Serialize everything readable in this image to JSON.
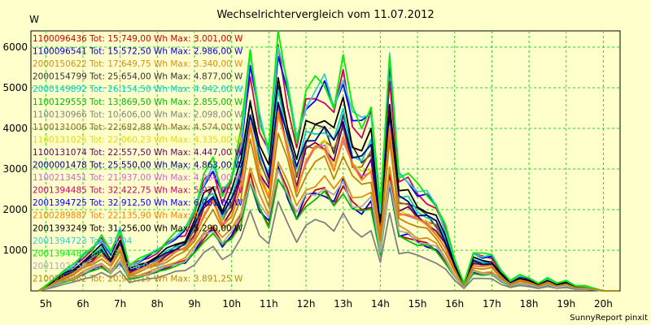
{
  "chart_data": {
    "type": "line",
    "title": "Wechselrichtervergleich vom 11.07.2012",
    "ylabel": "W",
    "xlabel": "",
    "ylim": [
      0,
      6400
    ],
    "xlim": [
      4.6,
      20.45
    ],
    "y_ticks": [
      1000,
      2000,
      3000,
      4000,
      5000,
      6000
    ],
    "x_ticks": [
      {
        "value": 5,
        "label": "5h"
      },
      {
        "value": 6,
        "label": "6h"
      },
      {
        "value": 7,
        "label": "7h"
      },
      {
        "value": 8,
        "label": "8h"
      },
      {
        "value": 9,
        "label": "9h"
      },
      {
        "value": 10,
        "label": "10h"
      },
      {
        "value": 11,
        "label": "11h"
      },
      {
        "value": 12,
        "label": "12h"
      },
      {
        "value": 13,
        "label": "13h"
      },
      {
        "value": 14,
        "label": "14h"
      },
      {
        "value": 15,
        "label": "15h"
      },
      {
        "value": 16,
        "label": "16h"
      },
      {
        "value": 17,
        "label": "17h"
      },
      {
        "value": 18,
        "label": "18h"
      },
      {
        "value": 19,
        "label": "19h"
      },
      {
        "value": 20,
        "label": "20h"
      }
    ],
    "grid": true,
    "legend_position": "top-left",
    "credit": "SunnyReport pinxit",
    "x": [
      4.8,
      5.0,
      5.25,
      5.5,
      5.75,
      6.0,
      6.25,
      6.5,
      6.75,
      7.0,
      7.25,
      7.5,
      7.75,
      8.0,
      8.25,
      8.5,
      8.75,
      9.0,
      9.25,
      9.5,
      9.75,
      10.0,
      10.25,
      10.5,
      10.75,
      11.0,
      11.25,
      11.5,
      11.75,
      12.0,
      12.25,
      12.5,
      12.75,
      13.0,
      13.25,
      13.5,
      13.75,
      14.0,
      14.25,
      14.5,
      14.75,
      15.0,
      15.25,
      15.5,
      15.75,
      16.0,
      16.25,
      16.5,
      16.75,
      17.0,
      17.25,
      17.5,
      17.75,
      18.0,
      18.25,
      18.5,
      18.75,
      19.0,
      19.25,
      19.5,
      19.75,
      20.0,
      20.4
    ],
    "profile": [
      0.0,
      0.02,
      0.05,
      0.08,
      0.1,
      0.14,
      0.17,
      0.21,
      0.15,
      0.24,
      0.1,
      0.12,
      0.14,
      0.16,
      0.19,
      0.22,
      0.24,
      0.32,
      0.44,
      0.5,
      0.38,
      0.45,
      0.6,
      0.92,
      0.68,
      0.56,
      1.0,
      0.8,
      0.6,
      0.76,
      0.8,
      0.82,
      0.73,
      0.88,
      0.7,
      0.66,
      0.72,
      0.32,
      0.91,
      0.46,
      0.45,
      0.4,
      0.38,
      0.34,
      0.25,
      0.12,
      0.03,
      0.15,
      0.14,
      0.14,
      0.08,
      0.04,
      0.06,
      0.05,
      0.03,
      0.05,
      0.03,
      0.04,
      0.02,
      0.02,
      0.01,
      0.0,
      0.0
    ],
    "series": [
      {
        "label": "1100096436 Tot: 15.749,00 Wh Max: 3.001,00 W",
        "color": "#cc0000",
        "peak": 3001
      },
      {
        "label": "1100096541 Tot: 15.572,50 Wh Max: 2.986,00 W",
        "color": "#0000cc",
        "peak": 2986
      },
      {
        "label": "2000150622 Tot: 17.649,75 Wh Max: 3.340,00 W",
        "color": "#d98c1a",
        "peak": 3340
      },
      {
        "label": "2000154799 Tot: 25.654,00 Wh Max: 4.877,00 W",
        "color": "#333333",
        "peak": 4877
      },
      {
        "label": "2000149892 Tot: 26.154,50 Wh Max: 4.942,00 W",
        "color": "#00cccc",
        "peak": 4942
      },
      {
        "label": "1100129553 Tot: 13.869,50 Wh Max: 2.855,00 W",
        "color": "#00bb00",
        "peak": 2855
      },
      {
        "label": "1100130966 Tot: 10.606,00 Wh Max: 2.098,00 W",
        "color": "#808080",
        "peak": 2098
      },
      {
        "label": "1100131006 Tot: 22.682,88 Wh Max: 4.574,00 W",
        "color": "#996633",
        "peak": 4574
      },
      {
        "label": "1100131025 Tot: 22.060,23 Wh Max: 4.335,00 W",
        "color": "#e6d800",
        "peak": 4335
      },
      {
        "label": "1100131074 Tot: 22.557,50 Wh Max: 4.447,00 W",
        "color": "#660066",
        "peak": 4447
      },
      {
        "label": "2000001478 Tot: 25.550,00 Wh Max: 4.863,00 W",
        "color": "#000080",
        "peak": 4863
      },
      {
        "label": "1100213451 Tot: 21.937,00 Wh Max: 4.264,00 W",
        "color": "#cc66cc",
        "peak": 4264
      },
      {
        "label": "2001394485 Tot: 32.422,75 Wh Max: 5.927,00 W",
        "color": "#cc0066",
        "peak": 5927
      },
      {
        "label": "2001394725 Tot: 32.912,50 Wh Max: 6.061,00 W",
        "color": "#0000ff",
        "peak": 6061
      },
      {
        "label": "2100289887 Tot: 22.135,90 Wh Max: 4.2",
        "color": "#ff8000",
        "peak": 4250
      },
      {
        "label": "2001393249 Tot: 31.256,00 Wh Max: 5.290,00 W",
        "color": "#000000",
        "peak": 5290
      },
      {
        "label": "2001394723 Tot: 33.04",
        "color": "#33cccc",
        "peak": 6200
      },
      {
        "label": "2001394487 Tot: 33.",
        "color": "#00ee00",
        "peak": 6350
      },
      {
        "label": "2001102358 Tot: 1 3.086,00 W",
        "color": "#aaaaaa",
        "peak": 3086
      },
      {
        "label": "2100285862 Tot: 20.967,15 Wh Max: 3.891,25 W",
        "color": "#b8860b",
        "peak": 3891
      }
    ]
  }
}
